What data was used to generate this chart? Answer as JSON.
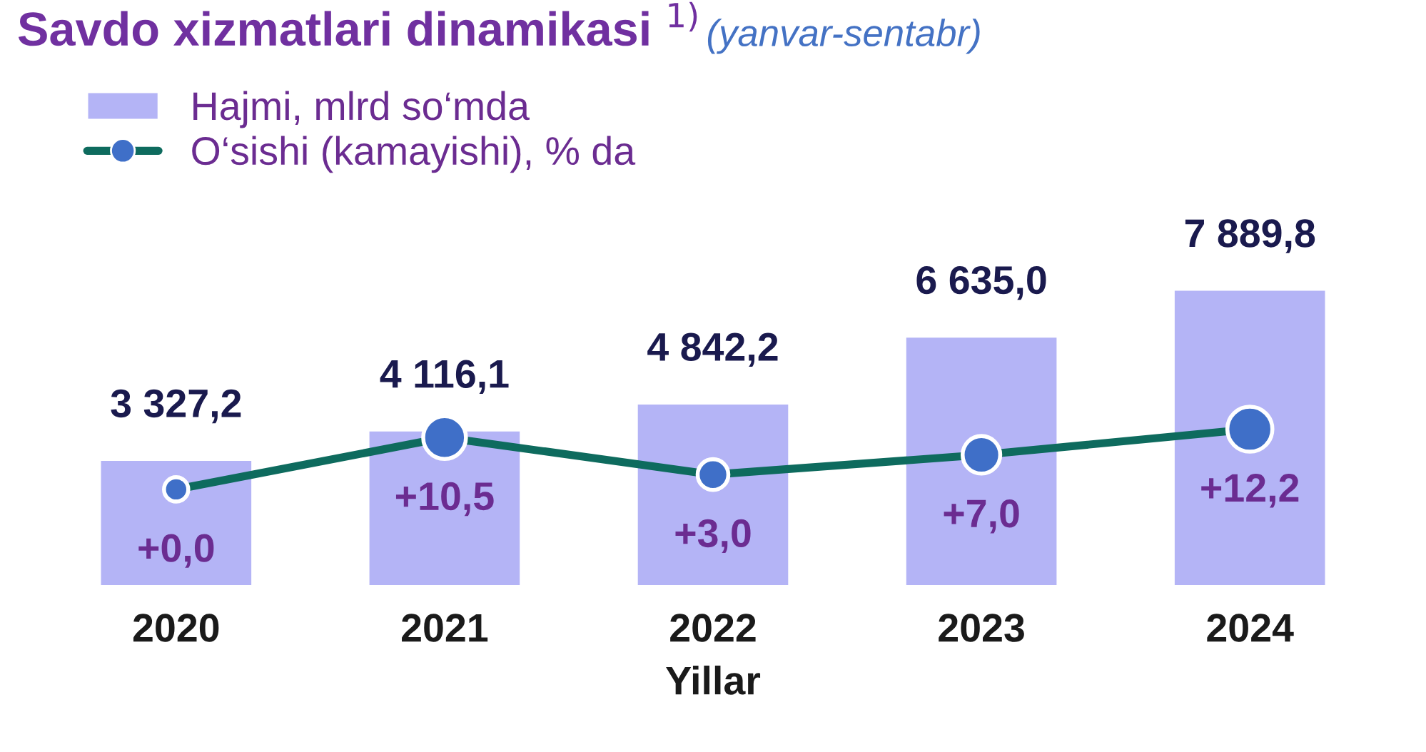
{
  "chart_data": {
    "type": "bar",
    "title": "Savdo xizmatlari dinamikasi $^{1)}$",
    "subtitle": "(yanvar-sentabr)",
    "xlabel": "Yillar",
    "categories": [
      "2020",
      "2021",
      "2022",
      "2023",
      "2024"
    ],
    "series": [
      {
        "name": "Hajmi, mlrd so‘mda",
        "color": "#b4b4f6",
        "values": [
          3327.2,
          4116.1,
          4842.2,
          6635.0,
          7889.8
        ],
        "value_labels": [
          "3 327,2",
          "4 116,1",
          "4 842,2",
          "6 635,0",
          "7 889,8"
        ]
      },
      {
        "name": "O‘sishi (kamayishi), % da",
        "type": "line",
        "axis": "y2",
        "color": "#0e6b5e",
        "values": [
          0.0,
          10.5,
          3.0,
          7.0,
          12.2
        ],
        "value_labels": [
          "+0,0",
          "+10,5",
          "+3,0",
          "+7,0",
          "+12,2"
        ]
      }
    ],
    "tick_labels": "x",
    "grid": false,
    "legend": "top left",
    "marker": "circle",
    "line_style": "solid"
  }
}
